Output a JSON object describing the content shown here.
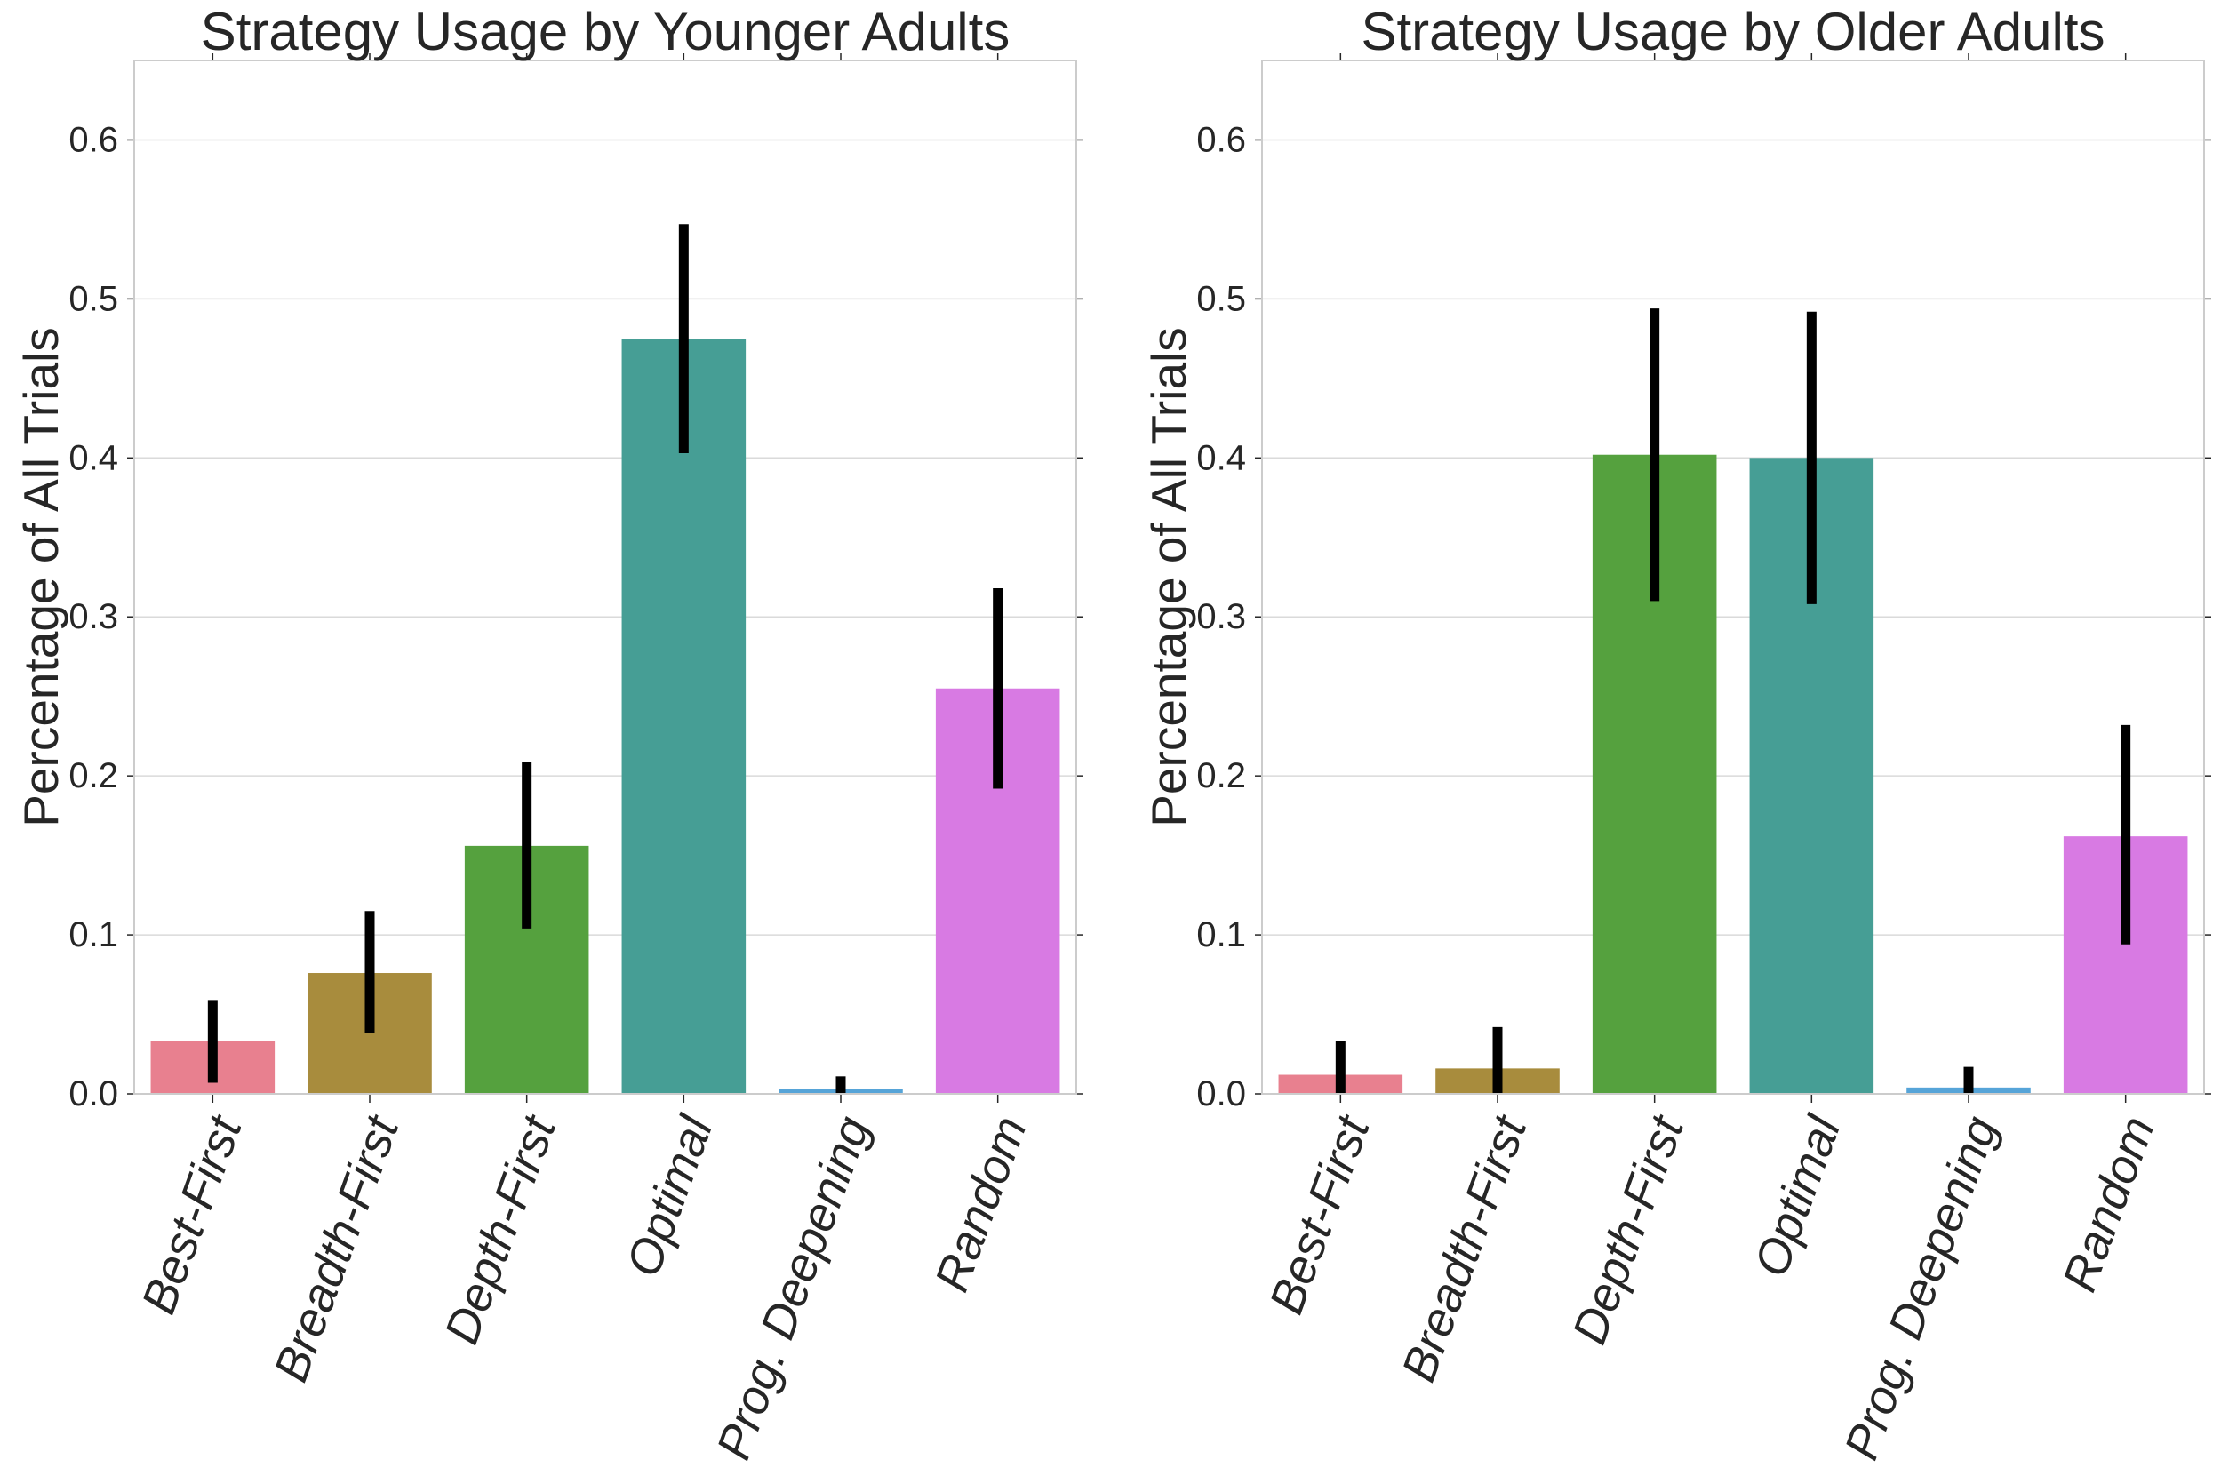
{
  "chart_data": [
    {
      "type": "bar",
      "title": "Strategy Usage by Younger Adults",
      "xlabel": "",
      "ylabel": "Percentage of All Trials",
      "ylim": [
        0,
        0.65
      ],
      "yticks": [
        "0.0",
        "0.1",
        "0.2",
        "0.3",
        "0.4",
        "0.5",
        "0.6"
      ],
      "grid": "horizontal",
      "categories": [
        "Best-First",
        "Breadth-First",
        "Depth-First",
        "Optimal",
        "Prog. Deepening",
        "Random"
      ],
      "values": [
        0.033,
        0.076,
        0.156,
        0.475,
        0.003,
        0.255
      ],
      "error_low": [
        0.007,
        0.038,
        0.104,
        0.403,
        0.0,
        0.192
      ],
      "error_high": [
        0.059,
        0.115,
        0.209,
        0.547,
        0.011,
        0.318
      ],
      "colors": [
        "#e8808f",
        "#a88c3d",
        "#55a13e",
        "#469e95",
        "#56a4d8",
        "#d87ae3"
      ]
    },
    {
      "type": "bar",
      "title": "Strategy Usage by Older Adults",
      "xlabel": "",
      "ylabel": "Percentage of All Trials",
      "ylim": [
        0,
        0.65
      ],
      "yticks": [
        "0.0",
        "0.1",
        "0.2",
        "0.3",
        "0.4",
        "0.5",
        "0.6"
      ],
      "grid": "horizontal",
      "categories": [
        "Best-First",
        "Breadth-First",
        "Depth-First",
        "Optimal",
        "Prog. Deepening",
        "Random"
      ],
      "values": [
        0.012,
        0.016,
        0.402,
        0.4,
        0.004,
        0.162
      ],
      "error_low": [
        0.0,
        0.0,
        0.31,
        0.308,
        0.0,
        0.094
      ],
      "error_high": [
        0.033,
        0.042,
        0.494,
        0.492,
        0.017,
        0.232
      ],
      "colors": [
        "#e8808f",
        "#a88c3d",
        "#55a13e",
        "#469e95",
        "#56a4d8",
        "#d87ae3"
      ]
    }
  ]
}
